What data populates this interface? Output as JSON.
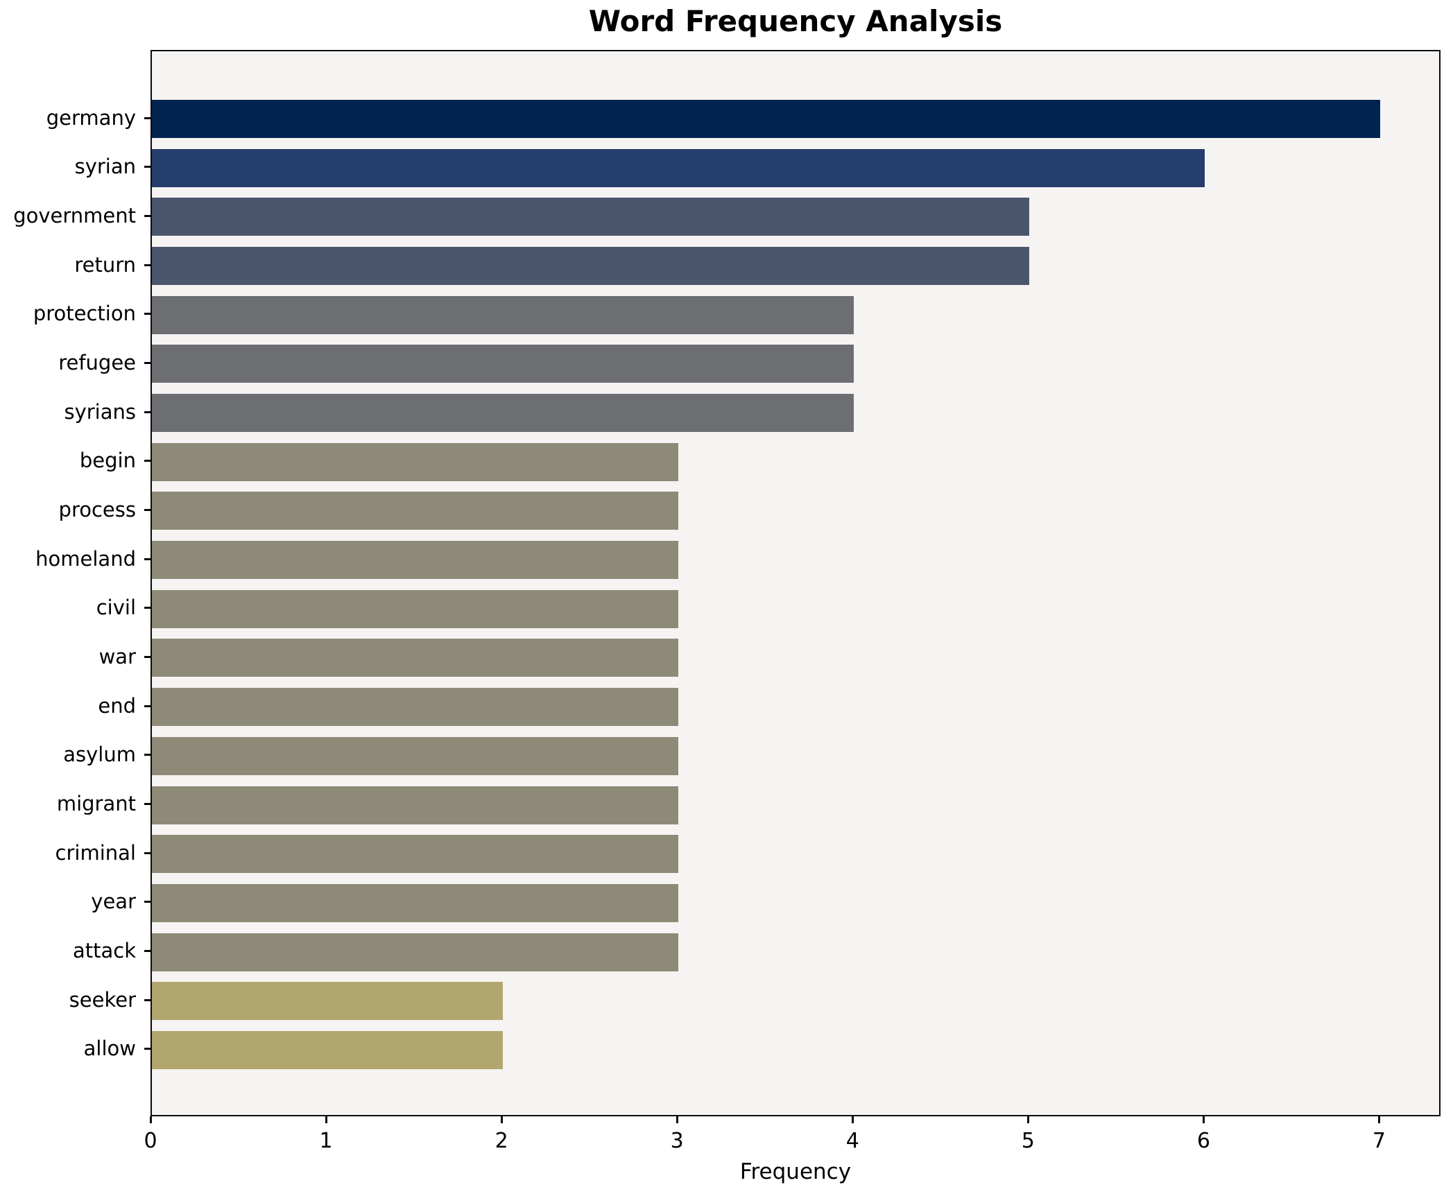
{
  "chart_data": {
    "type": "bar",
    "orientation": "horizontal",
    "title": "Word Frequency Analysis",
    "xlabel": "Frequency",
    "ylabel": "",
    "xlim": [
      0,
      7.35
    ],
    "xticks": [
      0,
      1,
      2,
      3,
      4,
      5,
      6,
      7
    ],
    "grid": false,
    "legend": "none",
    "plot_background": "#f5f4f2",
    "figure_background": "#ffffff",
    "spine_color": "#0b0b0b",
    "categories": [
      "germany",
      "syrian",
      "government",
      "return",
      "protection",
      "refugee",
      "syrians",
      "begin",
      "process",
      "homeland",
      "civil",
      "war",
      "end",
      "asylum",
      "migrant",
      "criminal",
      "year",
      "attack",
      "seeker",
      "allow"
    ],
    "values": [
      7,
      6,
      5,
      5,
      4,
      4,
      4,
      3,
      3,
      3,
      3,
      3,
      3,
      3,
      3,
      3,
      3,
      3,
      2,
      2
    ],
    "bar_colors": [
      "#022350",
      "#253d6d",
      "#4c556e",
      "#4c556e",
      "#6c6e71",
      "#6c6e71",
      "#6c6e71",
      "#8e8a78",
      "#8e8a78",
      "#8e8a78",
      "#8e8a78",
      "#8e8a78",
      "#8e8a78",
      "#8e8a78",
      "#8e8a78",
      "#8e8a78",
      "#8e8a78",
      "#8e8a78",
      "#b0a66e",
      "#b0a66e"
    ]
  }
}
